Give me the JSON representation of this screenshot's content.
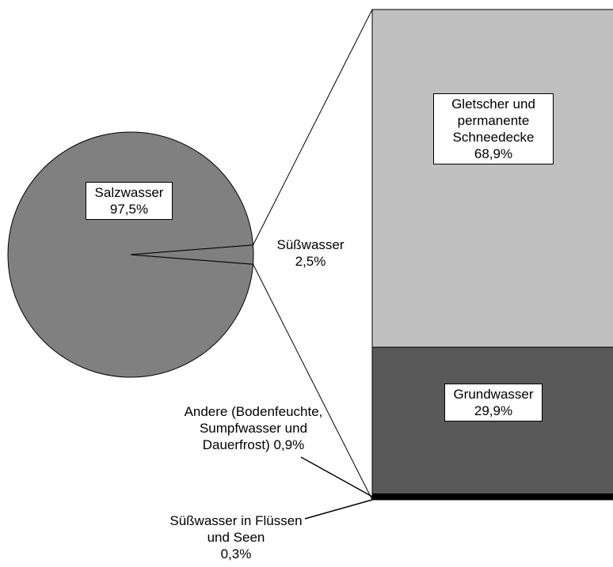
{
  "chart_data": {
    "type": "pie-of-bar",
    "pie": {
      "categories": [
        "Salzwasser",
        "Süßwasser"
      ],
      "values": [
        97.5,
        2.5
      ],
      "value_labels": [
        "97,5%",
        "2,5%"
      ],
      "colors": [
        "#808080",
        "#808080"
      ]
    },
    "bar": {
      "categories": [
        "Gletscher und permanente Schneedecke",
        "Grundwasser",
        "Andere (Bodenfeuchte, Sumpfwasser und Dauerfrost)",
        "Süßwasser in Flüssen und Seen"
      ],
      "values": [
        68.9,
        29.9,
        0.9,
        0.3
      ],
      "value_labels": [
        "68,9%",
        "29,9%",
        "0,9%",
        "0,3%"
      ],
      "colors": [
        "#c0c0c0",
        "#595959",
        "#000000",
        "#000000"
      ]
    }
  }
}
